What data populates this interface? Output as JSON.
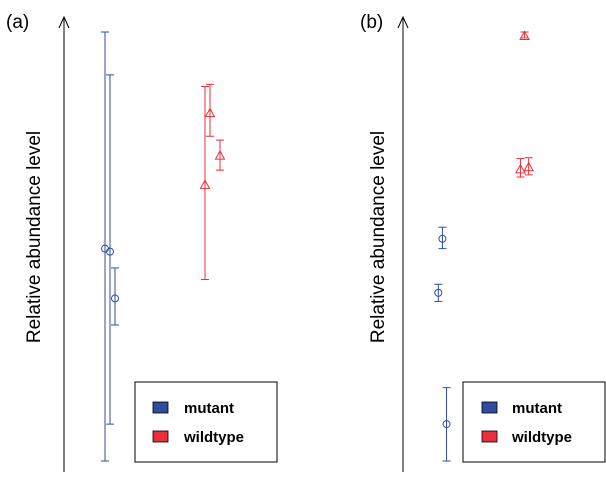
{
  "colors": {
    "mutant": "#2e4d9e",
    "wildtype": "#e8303a",
    "axis": "#000000"
  },
  "chart_data": [
    {
      "type": "scatter",
      "panel_label": "(a)",
      "ylabel": "Relative abundance level",
      "xlabel": "",
      "ylim": [
        0,
        100
      ],
      "legend": {
        "placement": "bottom-right",
        "entries": [
          "mutant",
          "wildtype"
        ]
      },
      "series": [
        {
          "name": "mutant",
          "marker": "circle",
          "points": [
            {
              "x": 1.0,
              "y": 49.5,
              "lo": 0,
              "hi": 100
            },
            {
              "x": 1.1,
              "y": 48.8,
              "lo": 8.6,
              "hi": 90
            },
            {
              "x": 1.2,
              "y": 37.9,
              "lo": 31.7,
              "hi": 45
            }
          ]
        },
        {
          "name": "wildtype",
          "marker": "triangle",
          "points": [
            {
              "x": 3.0,
              "y": 64.4,
              "lo": 42.3,
              "hi": 87.3
            },
            {
              "x": 3.1,
              "y": 81.1,
              "lo": 75.7,
              "hi": 87.8
            },
            {
              "x": 3.3,
              "y": 71.2,
              "lo": 67.8,
              "hi": 74.8
            }
          ]
        }
      ]
    },
    {
      "type": "scatter",
      "panel_label": "(b)",
      "ylabel": "Relative abundance level",
      "xlabel": "",
      "ylim": [
        0,
        100
      ],
      "legend": {
        "placement": "bottom-right",
        "entries": [
          "mutant",
          "wildtype"
        ]
      },
      "series": [
        {
          "name": "mutant",
          "marker": "circle",
          "points": [
            {
              "x": 1.0,
              "y": 39.2,
              "lo": 37.2,
              "hi": 41.2
            },
            {
              "x": 1.1,
              "y": 51.8,
              "lo": 49.5,
              "hi": 54.5
            },
            {
              "x": 1.2,
              "y": 8.6,
              "lo": 0,
              "hi": 17.1
            }
          ]
        },
        {
          "name": "wildtype",
          "marker": "triangle",
          "points": [
            {
              "x": 3.0,
              "y": 68.0,
              "lo": 66.2,
              "hi": 70.5
            },
            {
              "x": 3.2,
              "y": 68.5,
              "lo": 66.7,
              "hi": 70.7
            },
            {
              "x": 3.1,
              "y": 99.1,
              "lo": 98.6,
              "hi": 100
            }
          ]
        }
      ]
    }
  ]
}
